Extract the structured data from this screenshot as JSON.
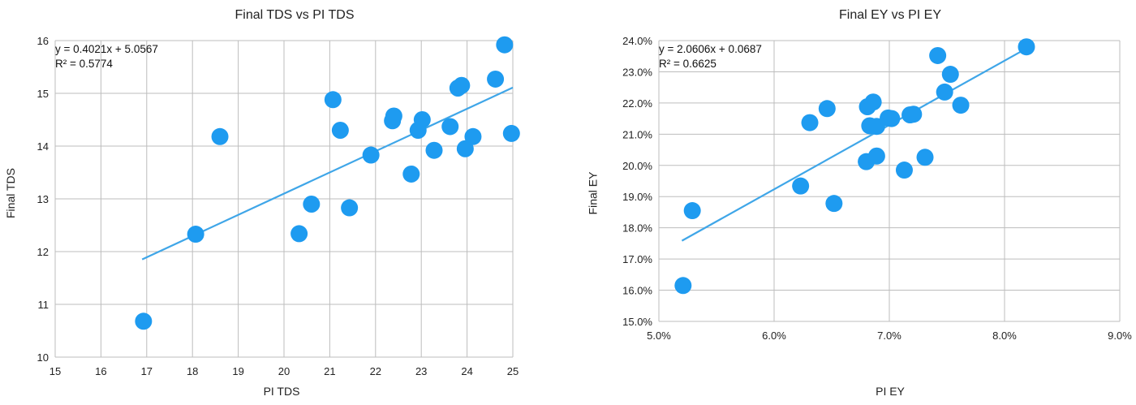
{
  "chart_data": [
    {
      "type": "scatter",
      "title": "Final TDS vs PI TDS",
      "xlabel": "PI TDS",
      "ylabel": "Final TDS",
      "xlim": [
        15,
        25
      ],
      "ylim": [
        10,
        16
      ],
      "xticks": [
        15,
        16,
        17,
        18,
        19,
        20,
        21,
        22,
        23,
        24,
        25
      ],
      "yticks": [
        10,
        11,
        12,
        13,
        14,
        15,
        16
      ],
      "xtick_labels": [
        "15",
        "16",
        "17",
        "18",
        "19",
        "20",
        "21",
        "22",
        "23",
        "24",
        "25"
      ],
      "ytick_labels": [
        "10",
        "11",
        "12",
        "13",
        "14",
        "15",
        "16"
      ],
      "grid": true,
      "marker_color": "#1e9bf0",
      "trend_color": "#3fa6e8",
      "trendline": {
        "slope": 0.4021,
        "intercept": 5.0567,
        "x_range": [
          16.9,
          25.0
        ]
      },
      "equation": "y = 0.4021x + 5.0567",
      "r_squared": "R² = 0.5774",
      "points": [
        {
          "x": 16.93,
          "y": 10.68
        },
        {
          "x": 18.07,
          "y": 12.33
        },
        {
          "x": 18.6,
          "y": 14.18
        },
        {
          "x": 20.33,
          "y": 12.34
        },
        {
          "x": 20.6,
          "y": 12.9
        },
        {
          "x": 21.07,
          "y": 14.88
        },
        {
          "x": 21.23,
          "y": 14.3
        },
        {
          "x": 21.43,
          "y": 12.83
        },
        {
          "x": 21.9,
          "y": 13.83
        },
        {
          "x": 22.37,
          "y": 14.48
        },
        {
          "x": 22.4,
          "y": 14.57
        },
        {
          "x": 22.78,
          "y": 13.47
        },
        {
          "x": 22.93,
          "y": 14.3
        },
        {
          "x": 23.02,
          "y": 14.5
        },
        {
          "x": 23.28,
          "y": 13.92
        },
        {
          "x": 23.63,
          "y": 14.37
        },
        {
          "x": 23.8,
          "y": 15.1
        },
        {
          "x": 23.88,
          "y": 15.15
        },
        {
          "x": 23.96,
          "y": 13.95
        },
        {
          "x": 24.13,
          "y": 14.18
        },
        {
          "x": 24.62,
          "y": 15.27
        },
        {
          "x": 24.82,
          "y": 15.92
        },
        {
          "x": 24.97,
          "y": 14.24
        }
      ]
    },
    {
      "type": "scatter",
      "title": "Final EY vs PI EY",
      "xlabel": "PI EY",
      "ylabel": "Final EY",
      "xlim": [
        5.0,
        9.0
      ],
      "ylim": [
        15.0,
        24.0
      ],
      "xticks": [
        5,
        6,
        7,
        8,
        9
      ],
      "yticks": [
        15,
        16,
        17,
        18,
        19,
        20,
        21,
        22,
        23,
        24
      ],
      "xtick_labels": [
        "5.0%",
        "6.0%",
        "7.0%",
        "8.0%",
        "9.0%"
      ],
      "ytick_labels": [
        "15.0%",
        "16.0%",
        "17.0%",
        "18.0%",
        "19.0%",
        "20.0%",
        "21.0%",
        "22.0%",
        "23.0%",
        "24.0%"
      ],
      "grid": true,
      "marker_color": "#1e9bf0",
      "trend_color": "#3fa6e8",
      "trendline": {
        "slope": 2.0606,
        "intercept": 6.87,
        "x_range": [
          5.2,
          8.2
        ]
      },
      "equation": "y = 2.0606x + 0.0687",
      "r_squared": "R² = 0.6625",
      "points": [
        {
          "x": 5.21,
          "y": 16.15
        },
        {
          "x": 5.29,
          "y": 18.55
        },
        {
          "x": 6.23,
          "y": 19.34
        },
        {
          "x": 6.31,
          "y": 21.37
        },
        {
          "x": 6.46,
          "y": 21.82
        },
        {
          "x": 6.52,
          "y": 18.78
        },
        {
          "x": 6.8,
          "y": 20.12
        },
        {
          "x": 6.81,
          "y": 21.88
        },
        {
          "x": 6.83,
          "y": 21.27
        },
        {
          "x": 6.86,
          "y": 22.03
        },
        {
          "x": 6.89,
          "y": 20.3
        },
        {
          "x": 6.89,
          "y": 21.25
        },
        {
          "x": 6.99,
          "y": 21.52
        },
        {
          "x": 7.02,
          "y": 21.5
        },
        {
          "x": 7.13,
          "y": 19.85
        },
        {
          "x": 7.18,
          "y": 21.62
        },
        {
          "x": 7.21,
          "y": 21.64
        },
        {
          "x": 7.31,
          "y": 20.26
        },
        {
          "x": 7.42,
          "y": 23.52
        },
        {
          "x": 7.48,
          "y": 22.35
        },
        {
          "x": 7.53,
          "y": 22.92
        },
        {
          "x": 7.62,
          "y": 21.93
        },
        {
          "x": 8.19,
          "y": 23.8
        }
      ]
    }
  ]
}
